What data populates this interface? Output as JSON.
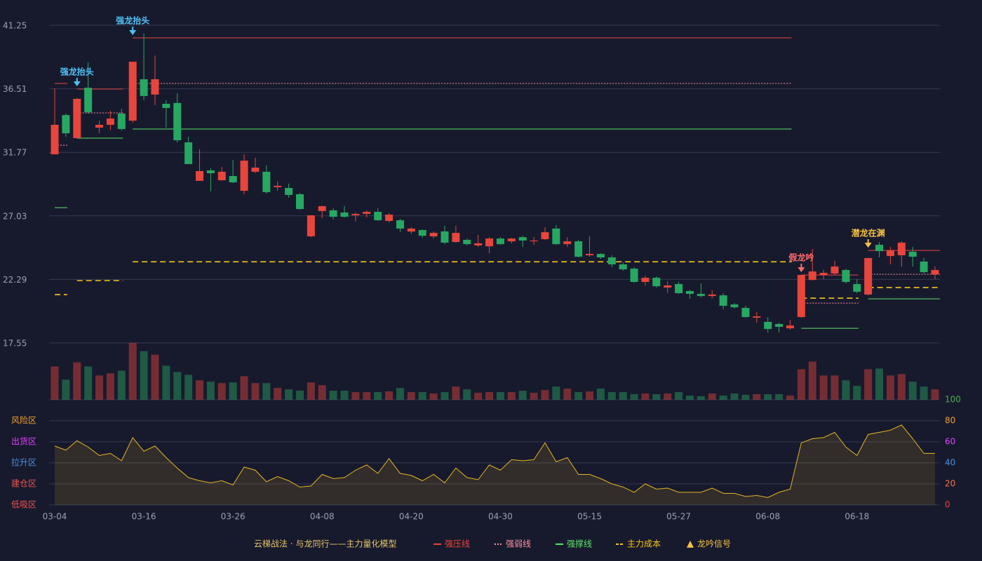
{
  "chart_data": {
    "type": "candlestick",
    "categories": [
      "03-04",
      null,
      null,
      null,
      null,
      null,
      null,
      null,
      "03-16",
      null,
      null,
      null,
      null,
      null,
      null,
      null,
      "03-26",
      null,
      null,
      null,
      null,
      null,
      null,
      null,
      "04-08",
      null,
      null,
      null,
      null,
      null,
      null,
      null,
      "04-20",
      null,
      null,
      null,
      null,
      null,
      null,
      null,
      "04-30",
      null,
      null,
      null,
      null,
      null,
      null,
      null,
      "05-15",
      null,
      null,
      null,
      null,
      null,
      null,
      null,
      "05-27",
      null,
      null,
      null,
      null,
      null,
      null,
      null,
      "06-08",
      null,
      null,
      null,
      null,
      null,
      null,
      null,
      "06-18",
      null,
      null,
      null,
      null,
      null,
      null,
      null
    ],
    "open": [
      31.62,
      34.55,
      32.83,
      36.59,
      33.61,
      33.82,
      34.66,
      34.13,
      37.22,
      36.08,
      35.39,
      35.45,
      32.51,
      29.64,
      30.42,
      29.69,
      30.0,
      28.9,
      30.32,
      30.32,
      29.17,
      29.11,
      28.64,
      25.5,
      27.39,
      27.44,
      27.28,
      27.07,
      27.18,
      27.33,
      26.65,
      26.7,
      25.86,
      25.97,
      25.5,
      25.87,
      25.08,
      25.24,
      24.82,
      24.76,
      25.34,
      25.13,
      25.44,
      25.13,
      25.29,
      26.08,
      24.92,
      25.13,
      24.09,
      24.19,
      23.93,
      23.41,
      23.09,
      22.1,
      22.41,
      21.68,
      21.94,
      21.42,
      21.21,
      21.05,
      21.1,
      20.42,
      20.16,
      19.43,
      19.12,
      18.96,
      18.64,
      19.48,
      22.25,
      22.62,
      22.73,
      22.99,
      21.94,
      21.16,
      24.87,
      24.03,
      24.09,
      24.35,
      23.62,
      22.67
    ],
    "high": [
      36.54,
      34.66,
      35.81,
      38.48,
      34.13,
      34.87,
      35.02,
      38.53,
      40.62,
      38.99,
      35.66,
      36.18,
      32.93,
      31.99,
      30.58,
      30.68,
      31.2,
      31.62,
      31.36,
      30.79,
      29.59,
      29.43,
      28.74,
      27.07,
      27.8,
      27.6,
      27.75,
      27.28,
      27.44,
      27.6,
      27.22,
      26.81,
      26.18,
      26.02,
      25.87,
      26.29,
      26.29,
      25.34,
      25.6,
      25.44,
      25.44,
      25.39,
      25.55,
      25.44,
      26.18,
      26.34,
      25.44,
      25.24,
      25.5,
      24.24,
      24.09,
      23.56,
      23.2,
      22.57,
      22.52,
      22.15,
      22.1,
      21.52,
      21.99,
      21.47,
      21.26,
      20.53,
      20.32,
      19.85,
      19.48,
      19.06,
      19.27,
      22.62,
      24.56,
      22.99,
      23.67,
      23.09,
      22.31,
      23.88,
      25.08,
      24.71,
      25.13,
      24.71,
      23.88,
      23.25
    ],
    "low": [
      31.62,
      32.93,
      32.83,
      34.66,
      33.19,
      33.45,
      33.4,
      33.97,
      35.66,
      35.29,
      33.61,
      32.51,
      30.89,
      29.64,
      28.85,
      29.64,
      29.48,
      28.64,
      30.21,
      28.69,
      28.9,
      28.38,
      27.49,
      25.45,
      26.86,
      26.75,
      26.91,
      26.6,
      26.91,
      26.65,
      26.54,
      25.81,
      25.71,
      25.39,
      25.34,
      24.92,
      25.03,
      24.82,
      24.71,
      24.24,
      24.87,
      24.98,
      24.71,
      24.87,
      25.24,
      24.87,
      24.71,
      23.93,
      23.98,
      23.82,
      23.2,
      22.93,
      22.05,
      21.84,
      21.68,
      21.26,
      21.21,
      20.84,
      20.95,
      20.89,
      20.06,
      20.11,
      19.43,
      19.06,
      18.33,
      18.33,
      18.54,
      19.43,
      22.2,
      22.31,
      22.62,
      21.99,
      21.26,
      21.1,
      23.93,
      23.41,
      23.25,
      23.25,
      22.73,
      22.31
    ],
    "close": [
      33.82,
      33.19,
      35.76,
      34.76,
      33.82,
      34.29,
      33.51,
      38.53,
      35.97,
      37.22,
      35.08,
      32.67,
      30.89,
      30.37,
      30.21,
      30.32,
      29.53,
      31.15,
      30.63,
      28.8,
      29.27,
      28.59,
      27.54,
      27.07,
      27.75,
      26.96,
      26.96,
      27.17,
      27.33,
      26.7,
      27.12,
      26.08,
      26.08,
      25.55,
      25.76,
      25.03,
      25.76,
      24.92,
      24.98,
      25.34,
      24.92,
      25.34,
      25.19,
      25.19,
      25.81,
      24.92,
      25.13,
      23.98,
      24.19,
      23.93,
      23.41,
      23.04,
      22.1,
      22.41,
      21.78,
      21.84,
      21.26,
      21.21,
      21.05,
      21.16,
      20.32,
      20.21,
      19.48,
      19.53,
      18.59,
      18.75,
      18.85,
      22.62,
      22.88,
      22.78,
      23.25,
      22.1,
      21.37,
      23.88,
      24.4,
      24.45,
      25.03,
      23.98,
      22.83,
      22.99
    ],
    "up_color": "#e8453c",
    "down_color": "#27a862",
    "ylim": [
      17.55,
      41.25
    ],
    "yticks": [
      17.55,
      22.29,
      27.03,
      31.77,
      36.51,
      41.25
    ],
    "grid": true,
    "volume": [
      48,
      29,
      54,
      48,
      35,
      38,
      42,
      82,
      70,
      65,
      49,
      40,
      36,
      28,
      26,
      24,
      25,
      34,
      24,
      24,
      17,
      15,
      13,
      25,
      21,
      13,
      13,
      11,
      11,
      11,
      12,
      17,
      11,
      11,
      9,
      11,
      19,
      15,
      10,
      11,
      11,
      11,
      13,
      10,
      14,
      19,
      16,
      11,
      12,
      16,
      11,
      11,
      8,
      9,
      8,
      9,
      11,
      6,
      5,
      9,
      6,
      9,
      7,
      8,
      8,
      8,
      6,
      44,
      55,
      35,
      35,
      28,
      20,
      44,
      45,
      35,
      37,
      26,
      19,
      15
    ],
    "levels": [
      {
        "name": "强压线",
        "color": "#e8453c",
        "style": "solid",
        "segments": [
          {
            "start": 0,
            "end": 1,
            "value": 36.91
          },
          {
            "start": 2,
            "end": 6,
            "value": 36.49
          },
          {
            "start": 7,
            "end": 66,
            "value": 40.31
          },
          {
            "start": 67,
            "end": 72,
            "value": 22.62
          },
          {
            "start": 73,
            "end": 79,
            "value": 24.45
          }
        ]
      },
      {
        "name": "强弱线",
        "color": "#ff8fa0",
        "style": "dotted",
        "segments": [
          {
            "start": 0,
            "end": 1,
            "value": 32.3
          },
          {
            "start": 2,
            "end": 6,
            "value": 34.71
          },
          {
            "start": 7,
            "end": 66,
            "value": 36.91
          },
          {
            "start": 67,
            "end": 72,
            "value": 20.52
          },
          {
            "start": 73,
            "end": 79,
            "value": 22.67
          }
        ]
      },
      {
        "name": "强撑线",
        "color": "#5ee36a",
        "style": "solid",
        "segments": [
          {
            "start": 0,
            "end": 1,
            "value": 27.64
          },
          {
            "start": 2,
            "end": 6,
            "value": 32.83
          },
          {
            "start": 7,
            "end": 66,
            "value": 33.51
          },
          {
            "start": 67,
            "end": 72,
            "value": 18.64
          },
          {
            "start": 73,
            "end": 79,
            "value": 20.84
          }
        ]
      },
      {
        "name": "主力成本",
        "color": "#f5c518",
        "style": "dashed",
        "segments": [
          {
            "start": 0,
            "end": 1,
            "value": 21.15
          },
          {
            "start": 2,
            "end": 6,
            "value": 22.2
          },
          {
            "start": 7,
            "end": 66,
            "value": 23.6
          },
          {
            "start": 67,
            "end": 72,
            "value": 20.89
          },
          {
            "start": 73,
            "end": 79,
            "value": 21.68
          }
        ]
      }
    ],
    "signals": [
      {
        "text": "强龙抬头",
        "index": 2,
        "color": "#4fc3f7"
      },
      {
        "text": "强龙抬头",
        "index": 7,
        "color": "#4fc3f7"
      },
      {
        "text": "假龙吟",
        "index": 67,
        "color": "#ff6b6b"
      },
      {
        "text": "潜龙在渊",
        "index": 73,
        "color": "#f5c242"
      }
    ],
    "signal_legend": "龙吟信号",
    "signal_legend_color": "#f5c242",
    "indicator": {
      "values": [
        56,
        52,
        61,
        55,
        47,
        49,
        42,
        64,
        51,
        56,
        45,
        35,
        26,
        23,
        21,
        23,
        19,
        36,
        33,
        22,
        27,
        23,
        17,
        18,
        29,
        25,
        26,
        33,
        38,
        30,
        44,
        30,
        28,
        23,
        29,
        21,
        35,
        26,
        24,
        38,
        33,
        43,
        42,
        43,
        59,
        41,
        45,
        29,
        29,
        25,
        20,
        17,
        12,
        20,
        15,
        16,
        12,
        12,
        12,
        16,
        11,
        11,
        8,
        9,
        7,
        12,
        15,
        59,
        63,
        64,
        69,
        55,
        47,
        67,
        69,
        71,
        76,
        63,
        49,
        49
      ],
      "color": "#e6b422",
      "y2lim": [
        0,
        100
      ],
      "y2ticks": [
        0,
        20,
        40,
        60,
        80,
        100
      ],
      "tick_colors": [
        "#f44336",
        "#ff7043",
        "#4a90e2",
        "#e040fb",
        "#f0a030",
        "#4caf50"
      ],
      "zones": [
        "低吸区",
        "建仓区",
        "拉升区",
        "出货区",
        "风险区"
      ],
      "zone_colors": [
        "#ef5350",
        "#ef5350",
        "#4a90e2",
        "#e040fb",
        "#f0a030"
      ]
    },
    "legend_title": "云梯战法 · 与龙同行——主力量化模型",
    "legend_title_color": "#e8c56a"
  }
}
